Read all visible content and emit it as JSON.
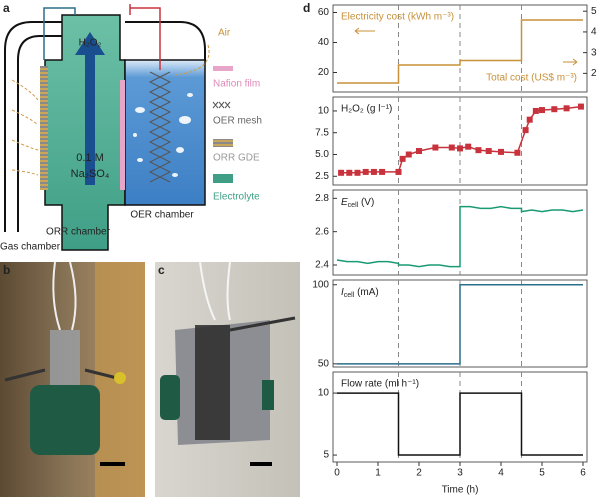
{
  "diagram": {
    "panel_labels": [
      "a",
      "b",
      "c",
      "d"
    ],
    "h2o2": "H₂O₂",
    "electrolyte_conc": "0.1 M",
    "electrolyte_salt": "Na₂SO₄",
    "orr_chamber": "ORR chamber",
    "oer_chamber": "OER chamber",
    "gas_chamber": "Gas chamber",
    "air": "Air",
    "legend": [
      "Nafion film",
      "OER mesh",
      "ORR GDE",
      "Electrolyte"
    ]
  },
  "chart_data": [
    {
      "type": "line",
      "ylabel": "Electricity cost (kWh m⁻³)",
      "y2label": "Total cost (US$ m⁻³)",
      "color": "#c8913a",
      "x": [
        0,
        1.5,
        1.5,
        3,
        3,
        4.5,
        4.5,
        6
      ],
      "values": [
        13,
        13,
        25,
        25,
        28,
        28,
        55,
        55
      ],
      "xlim": [
        0,
        6
      ],
      "ylim": [
        7,
        65
      ],
      "yticks": [
        20,
        40,
        60
      ],
      "y2lim": [
        1.1,
        5.3
      ],
      "y2ticks": [
        2,
        3,
        4,
        5
      ],
      "vlines": [
        1.5,
        3,
        4.5
      ]
    },
    {
      "type": "scatter",
      "ylabel": "H₂O₂ (g l⁻¹)",
      "color": "#c8323c",
      "x": [
        0.1,
        0.3,
        0.5,
        0.7,
        0.9,
        1.1,
        1.5,
        1.6,
        1.75,
        2.0,
        2.4,
        2.8,
        3.0,
        3.2,
        3.45,
        3.7,
        4.0,
        4.4,
        4.6,
        4.7,
        4.85,
        5.0,
        5.3,
        5.6,
        5.95
      ],
      "values": [
        2.9,
        2.9,
        2.9,
        3.0,
        3.0,
        3.0,
        3.0,
        4.5,
        5.0,
        5.4,
        5.8,
        5.8,
        5.7,
        5.9,
        5.5,
        5.4,
        5.3,
        5.2,
        7.8,
        9.0,
        10.0,
        10.1,
        10.2,
        10.3,
        10.5
      ],
      "xlim": [
        0,
        6
      ],
      "ylim": [
        1.5,
        11.6
      ],
      "yticks": [
        2.5,
        {
          "value": 5,
          "label": "5.0"
        },
        7.5,
        10
      ],
      "vlines": [
        1.5,
        3,
        4.5
      ]
    },
    {
      "type": "line",
      "ylabel": [
        "E",
        "cell",
        " (V)"
      ],
      "color": "#1a9a73",
      "x": [
        0,
        0.25,
        0.5,
        0.75,
        1,
        1.25,
        1.5,
        1.5,
        1.75,
        2,
        2.25,
        2.5,
        2.75,
        3,
        3,
        3.25,
        3.5,
        3.75,
        4,
        4.25,
        4.5,
        4.5,
        4.75,
        5,
        5.25,
        5.5,
        5.75,
        6
      ],
      "values": [
        2.43,
        2.42,
        2.42,
        2.41,
        2.42,
        2.42,
        2.41,
        2.4,
        2.4,
        2.39,
        2.4,
        2.4,
        2.39,
        2.39,
        2.75,
        2.75,
        2.74,
        2.74,
        2.75,
        2.74,
        2.74,
        2.72,
        2.73,
        2.72,
        2.73,
        2.73,
        2.72,
        2.73
      ],
      "xlim": [
        0,
        6
      ],
      "ylim": [
        2.34,
        2.85
      ],
      "yticks": [
        2.4,
        2.6,
        2.8
      ],
      "vlines": [
        1.5,
        3,
        4.5
      ]
    },
    {
      "type": "line",
      "ylabel": [
        "I",
        "cell",
        " (mA)"
      ],
      "color": "#2a6f8a",
      "x": [
        0,
        3,
        3,
        6
      ],
      "values": [
        50,
        50,
        100,
        100
      ],
      "xlim": [
        0,
        6
      ],
      "ylim": [
        48,
        103
      ],
      "yticks": [
        50,
        100
      ],
      "vlines": [
        1.5,
        3,
        4.5
      ]
    },
    {
      "type": "line",
      "ylabel": "Flow rate (ml h⁻¹)",
      "color": "#111111",
      "x": [
        0,
        1.5,
        1.5,
        3,
        3,
        4.5,
        4.5,
        6
      ],
      "values": [
        10,
        10,
        5,
        5,
        10,
        10,
        5,
        5
      ],
      "xlim": [
        0,
        6
      ],
      "ylim": [
        4.44,
        11.7
      ],
      "yticks": [
        5,
        10
      ],
      "xticks": [
        0,
        1,
        2,
        3,
        4,
        5,
        6
      ],
      "xlabel": "Time (h)",
      "vlines": [
        1.5,
        3,
        4.5
      ]
    }
  ]
}
